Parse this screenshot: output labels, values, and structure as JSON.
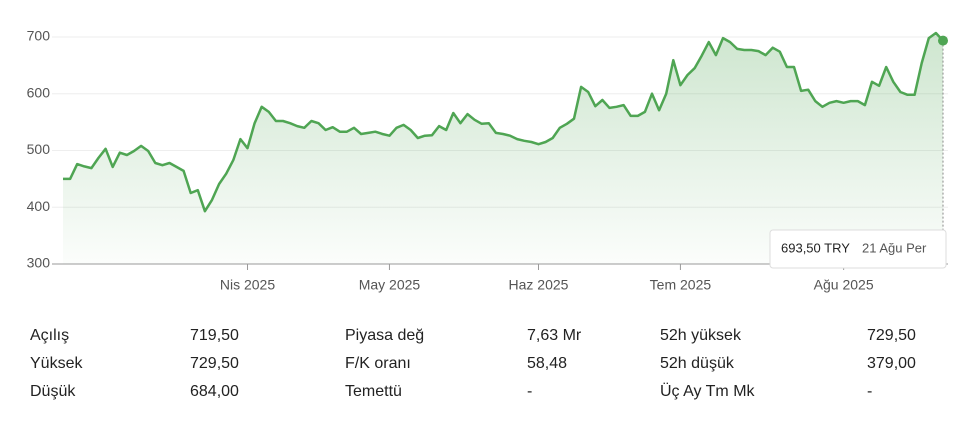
{
  "chart_data": {
    "type": "line",
    "color": "#4fa553",
    "grid": true,
    "ylim": [
      300,
      720
    ],
    "yticks": [
      300,
      400,
      500,
      600,
      700
    ],
    "xlim": [
      0,
      124
    ],
    "xticks": [
      {
        "value": 26,
        "label": "Nis 2025"
      },
      {
        "value": 46,
        "label": "May 2025"
      },
      {
        "value": 67,
        "label": "Haz 2025"
      },
      {
        "value": 87,
        "label": "Tem 2025"
      },
      {
        "value": 110,
        "label": "Ağu 2025"
      }
    ],
    "values": [
      450,
      450,
      476,
      472,
      469,
      487,
      503,
      471,
      496,
      492,
      499,
      508,
      499,
      478,
      474,
      478,
      471,
      464,
      425,
      430,
      393,
      413,
      441,
      459,
      483,
      520,
      504,
      548,
      577,
      568,
      552,
      552,
      548,
      543,
      540,
      552,
      548,
      536,
      541,
      533,
      533,
      540,
      529,
      531,
      533,
      529,
      526,
      540,
      545,
      536,
      522,
      526,
      527,
      543,
      536,
      566,
      548,
      564,
      554,
      547,
      548,
      531,
      529,
      526,
      520,
      517,
      515,
      511,
      515,
      522,
      540,
      547,
      556,
      612,
      603,
      578,
      589,
      575,
      577,
      580,
      561,
      561,
      568,
      600,
      571,
      600,
      659,
      615,
      633,
      645,
      667,
      691,
      668,
      698,
      691,
      679,
      677,
      677,
      675,
      668,
      681,
      674,
      647,
      647,
      605,
      607,
      587,
      577,
      584,
      587,
      584,
      587,
      587,
      580,
      621,
      614,
      647,
      621,
      603,
      598,
      598,
      654,
      698,
      707,
      693.5
    ],
    "tooltip": {
      "label": "693,50 TRY",
      "date": "21 Ağu Per"
    }
  },
  "stats": [
    [
      [
        "Açılış",
        "719,50"
      ],
      [
        "Piyasa değ",
        "7,63 Mr"
      ],
      [
        "52h yüksek",
        "729,50"
      ]
    ],
    [
      [
        "Yüksek",
        "729,50"
      ],
      [
        "F/K oranı",
        "58,48"
      ],
      [
        "52h düşük",
        "379,00"
      ]
    ],
    [
      [
        "Düşük",
        "684,00"
      ],
      [
        "Temettü",
        "-"
      ],
      [
        "Üç Ay Tm Mk",
        "-"
      ]
    ]
  ]
}
